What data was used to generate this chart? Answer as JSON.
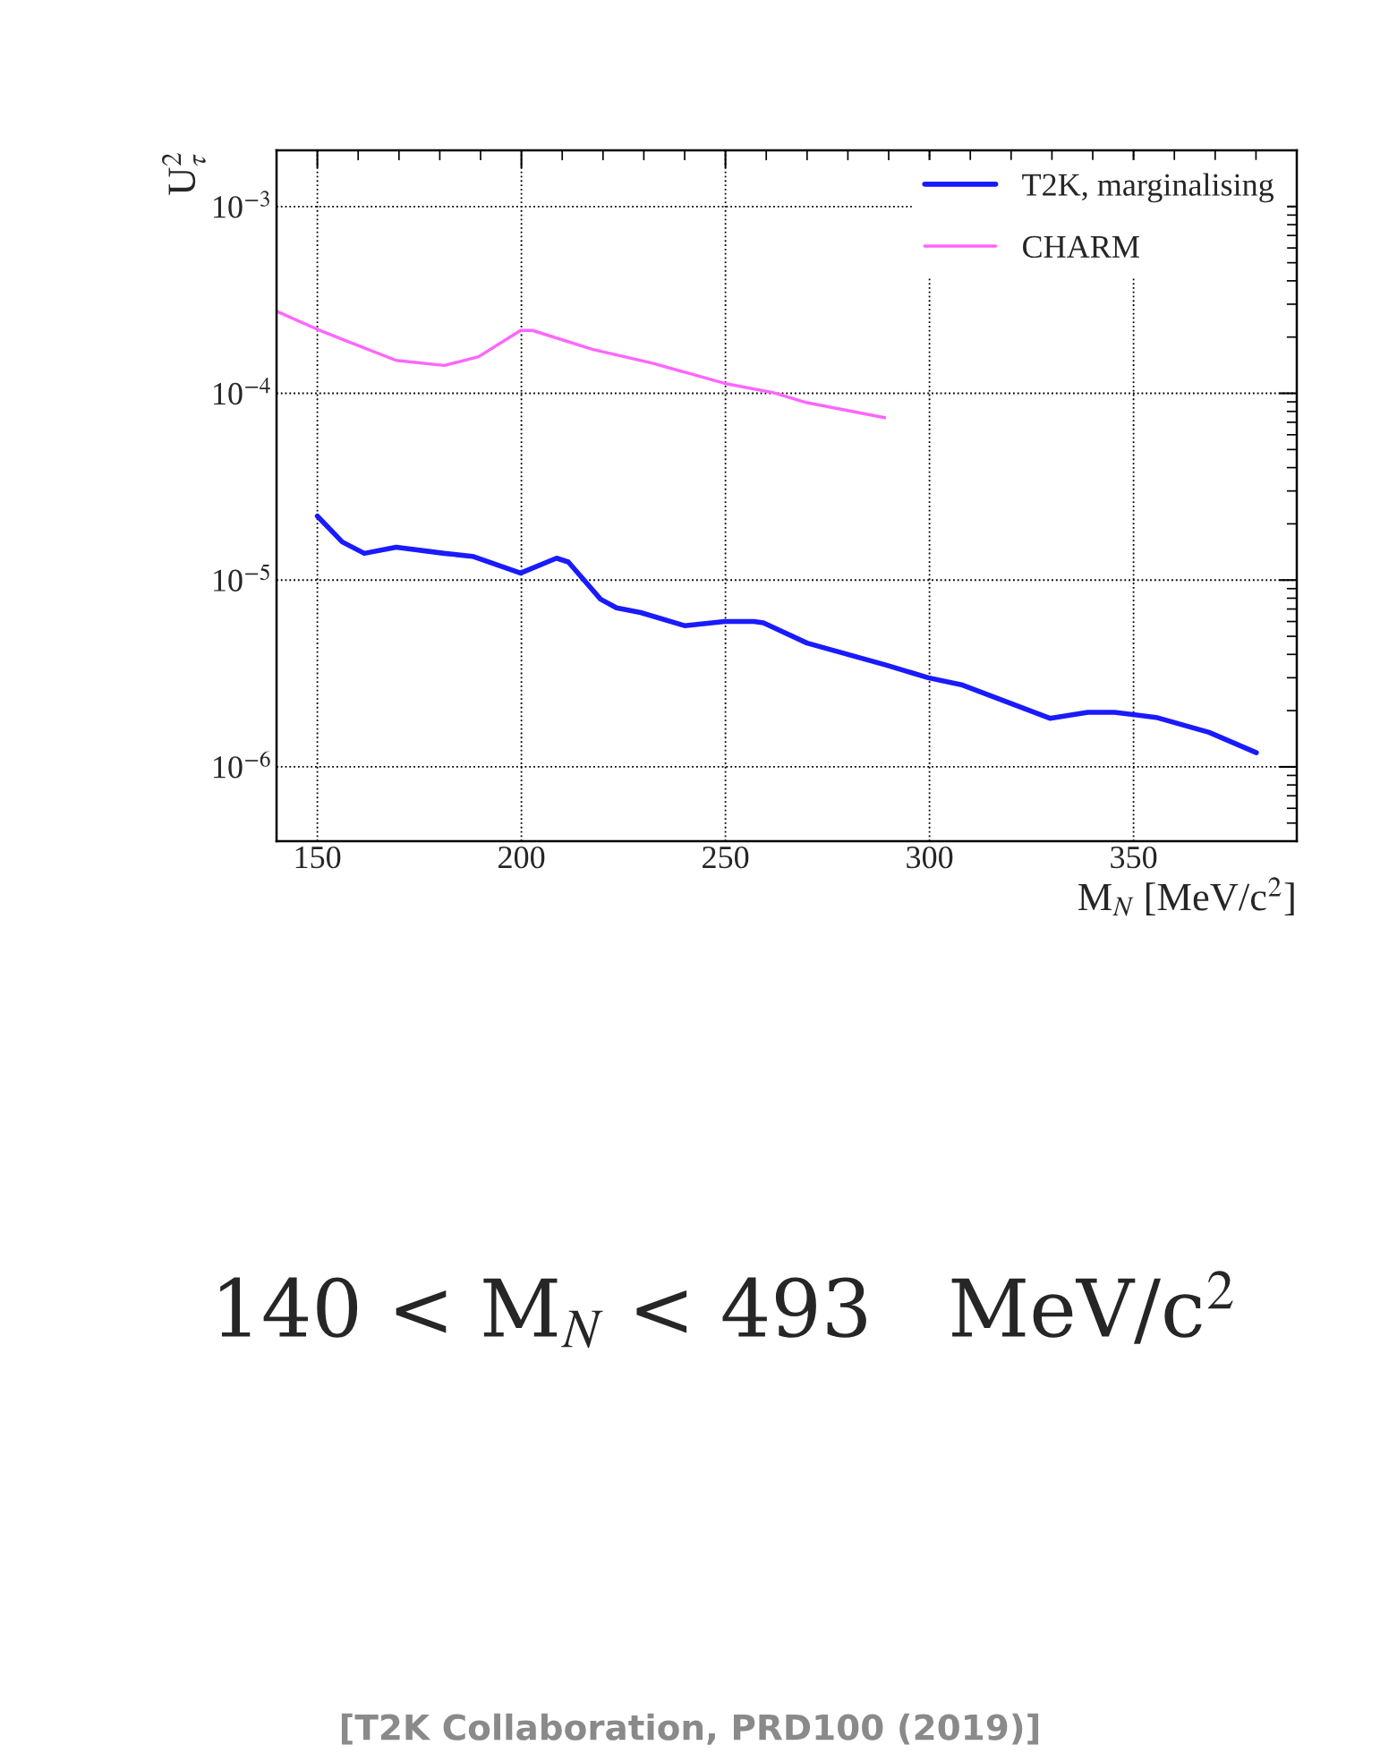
{
  "chart_data": {
    "type": "line",
    "xlabel": "M$_{N}$ [MeV/c$^{2}$]",
    "ylabel": "U$^{2}$$_{τ}$",
    "log": "y",
    "grid": true,
    "legend": "top right",
    "line_style": "solid",
    "marker": "none",
    "xlim": [
      140,
      390
    ],
    "ylim": [
      4e-07,
      0.002
    ],
    "xticks": [
      150,
      {
        "value": 160,
        "label": null
      },
      {
        "value": 170,
        "label": null
      },
      {
        "value": 180,
        "label": null
      },
      {
        "value": 190,
        "label": null
      },
      200,
      {
        "value": 210,
        "label": null
      },
      {
        "value": 220,
        "label": null
      },
      {
        "value": 230,
        "label": null
      },
      {
        "value": 240,
        "label": null
      },
      250,
      {
        "value": 260,
        "label": null
      },
      {
        "value": 270,
        "label": null
      },
      {
        "value": 280,
        "label": null
      },
      {
        "value": 290,
        "label": null
      },
      300,
      {
        "value": 310,
        "label": null
      },
      {
        "value": 320,
        "label": null
      },
      {
        "value": 330,
        "label": null
      },
      {
        "value": 340,
        "label": null
      },
      350,
      {
        "value": 360,
        "label": null
      },
      {
        "value": 370,
        "label": null
      },
      {
        "value": 380,
        "label": null
      }
    ],
    "yticks": [
      {
        "value": 1e-06,
        "label": "10$^{−6}$"
      },
      {
        "value": 1e-05,
        "label": "10$^{−5}$"
      },
      {
        "value": 0.0001,
        "label": "10$^{−4}$"
      },
      {
        "value": 0.001,
        "label": "10$^{−3}$"
      }
    ],
    "series": [
      {
        "name": "T2K, marginalising",
        "color": "#1a1aff",
        "x": [
          150,
          156.1,
          161.5,
          169.3,
          181.1,
          188,
          199.8,
          208.6,
          211.5,
          219.4,
          223.3,
          229.2,
          240,
          249.8,
          257,
          259.3,
          270,
          289.5,
          299.7,
          308.1,
          329.5,
          338.8,
          345.3,
          355.5,
          368.5,
          380.1
        ],
        "values": [
          2.2e-05,
          1.6e-05,
          1.39e-05,
          1.5e-05,
          1.39e-05,
          1.34e-05,
          1.09e-05,
          1.31e-05,
          1.25e-05,
          7.9e-06,
          7.1e-06,
          6.7e-06,
          5.7e-06,
          6e-06,
          6e-06,
          5.9e-06,
          4.6e-06,
          3.5e-06,
          3e-06,
          2.74e-06,
          1.82e-06,
          1.96e-06,
          1.96e-06,
          1.84e-06,
          1.53e-06,
          1.19e-06
        ]
      },
      {
        "name": "CHARM",
        "color": "#ff66ff",
        "x": [
          140,
          150,
          157.6,
          169.3,
          181.1,
          189.5,
          199.8,
          202.7,
          217.4,
          232.1,
          249.8,
          261.6,
          270,
          289
        ],
        "values": [
          0.000275,
          0.00022,
          0.000189,
          0.00015,
          0.000141,
          0.000157,
          0.000217,
          0.000217,
          0.000172,
          0.000145,
          0.000113,
          0.000101,
          8.9e-05,
          7.4e-05
        ]
      }
    ],
    "annotations": [
      "140 < M$_{N}$ < 493   MeV/c$^{2}$",
      "[T2K Collaboration, PRD100 (2019)]"
    ]
  }
}
